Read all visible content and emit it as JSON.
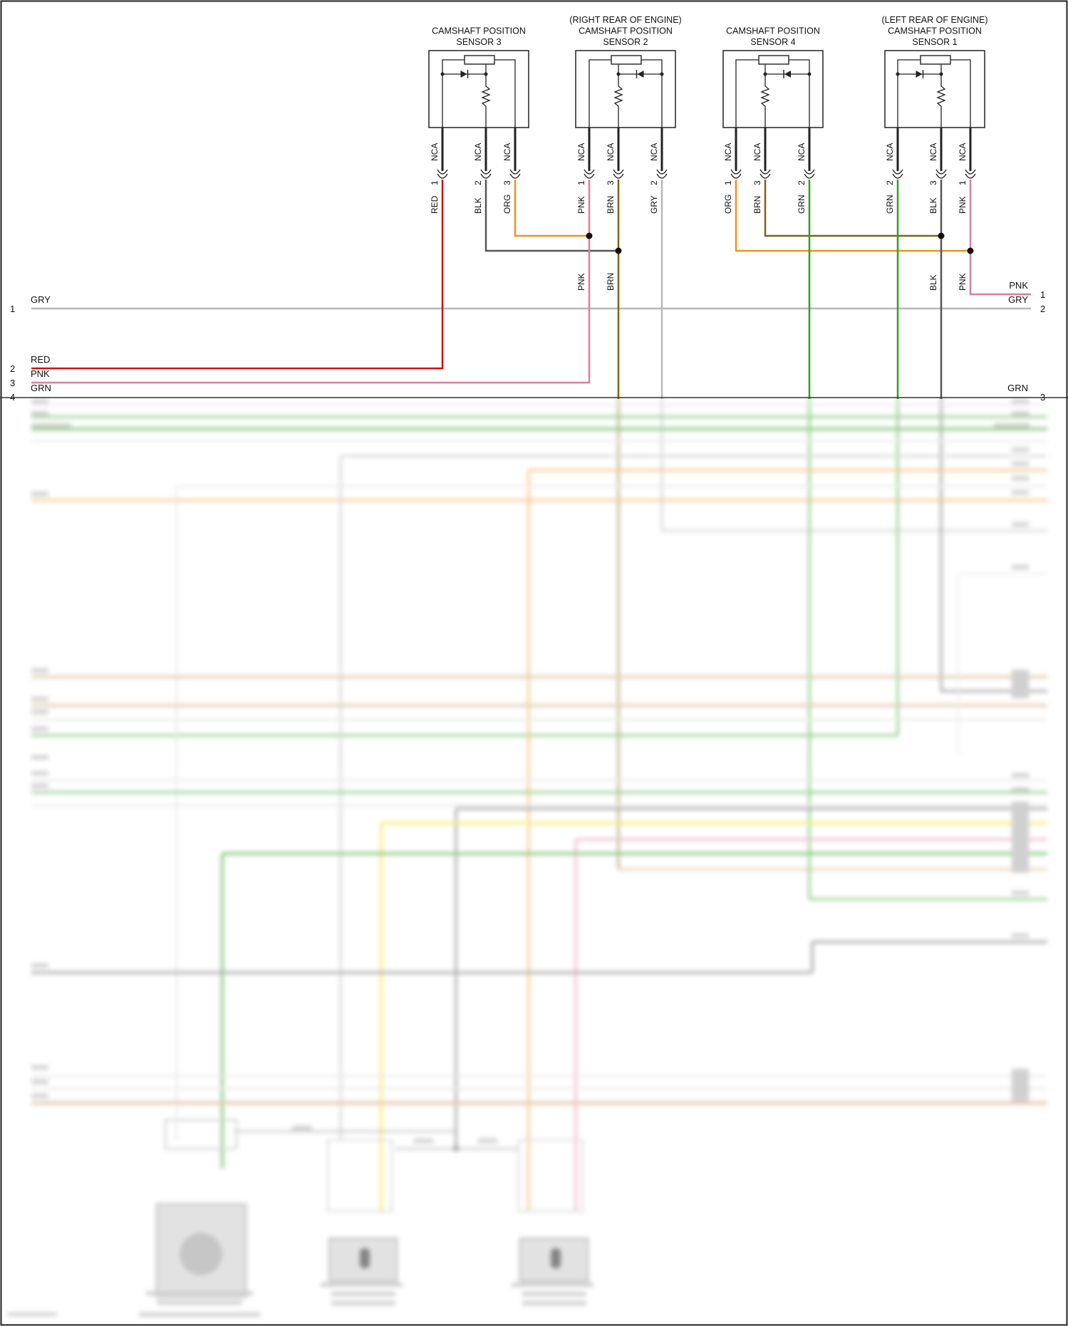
{
  "sensors": [
    {
      "key": "s3",
      "title": [
        "CAMSHAFT POSITION",
        "SENSOR 3"
      ],
      "pins": [
        {
          "n": "1",
          "nca": "NCA",
          "color": "RED"
        },
        {
          "n": "2",
          "nca": "NCA",
          "color": "BLK"
        },
        {
          "n": "3",
          "nca": "NCA",
          "color": "ORG"
        }
      ]
    },
    {
      "key": "s2",
      "title": [
        "(RIGHT REAR OF ENGINE)",
        "CAMSHAFT POSITION",
        "SENSOR 2"
      ],
      "pins": [
        {
          "n": "1",
          "nca": "NCA",
          "color": "PNK"
        },
        {
          "n": "3",
          "nca": "NCA",
          "color": "BRN"
        },
        {
          "n": "2",
          "nca": "NCA",
          "color": "GRY"
        }
      ]
    },
    {
      "key": "s4",
      "title": [
        "CAMSHAFT POSITION",
        "SENSOR 4"
      ],
      "pins": [
        {
          "n": "1",
          "nca": "NCA",
          "color": "ORG"
        },
        {
          "n": "3",
          "nca": "NCA",
          "color": "BRN"
        },
        {
          "n": "2",
          "nca": "NCA",
          "color": "GRN"
        }
      ]
    },
    {
      "key": "s1",
      "title": [
        "(LEFT REAR OF ENGINE)",
        "CAMSHAFT POSITION",
        "SENSOR 1"
      ],
      "pins": [
        {
          "n": "2",
          "nca": "NCA",
          "color": "GRN"
        },
        {
          "n": "3",
          "nca": "NCA",
          "color": "BLK"
        },
        {
          "n": "1",
          "nca": "NCA",
          "color": "PNK"
        }
      ]
    }
  ],
  "splice_labels": [
    "PNK",
    "BRN",
    "BLK",
    "PNK"
  ],
  "left_pins": [
    {
      "n": "1",
      "color": "GRY"
    },
    {
      "n": "2",
      "color": "RED"
    },
    {
      "n": "3",
      "color": "PNK"
    },
    {
      "n": "4",
      "color": "GRN"
    }
  ],
  "right_pins": [
    {
      "n": "1",
      "color": "PNK"
    },
    {
      "n": "2",
      "color": "GRY"
    },
    {
      "n": "3",
      "color": "GRN"
    }
  ],
  "wire_colors": {
    "RED": "#d01010",
    "PNK": "#e07aa0",
    "GRY": "#b8b8b8",
    "GRN": "#2fa11e",
    "ORG": "#f0921e",
    "BRN": "#7a6414",
    "BLK": "#555555",
    "YEL": "#f0e020",
    "TAN": "#c9a87a",
    "WHT": "#dddddd"
  }
}
